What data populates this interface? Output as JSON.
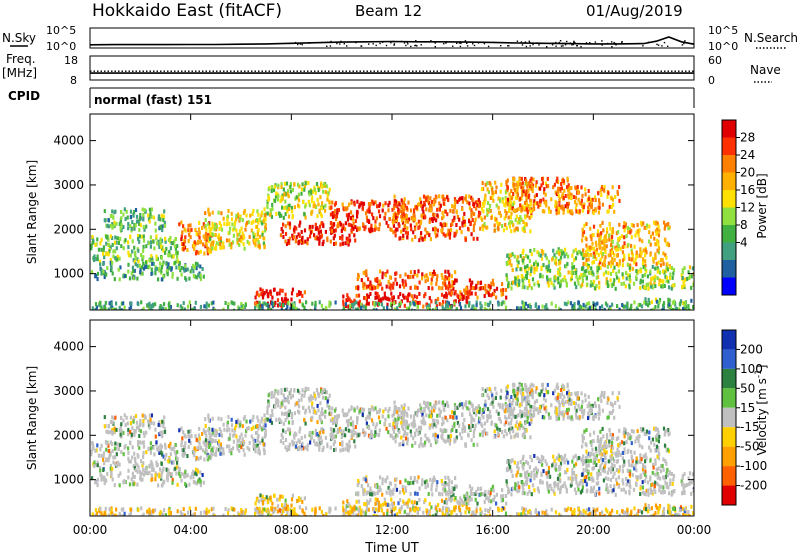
{
  "header": {
    "radar": "Hokkaido East (fitACF)",
    "beam": "Beam 12",
    "date": "01/Aug/2019"
  },
  "left_labels": {
    "nsky": "N.Sky",
    "freq": "Freq.",
    "mhz": "[MHz]",
    "cpid": "CPID"
  },
  "right_labels": {
    "nsearch": "N.Search",
    "nave": "Nave"
  },
  "cpid_text": "normal (fast) 151",
  "chart_data": [
    {
      "type": "line",
      "name": "noise-panel",
      "x_range_hours": [
        0,
        24
      ],
      "left_ticks": [
        "10^5",
        "10^0"
      ],
      "right_ticks": [
        "10^5",
        "10^0"
      ],
      "series": [
        {
          "name": "N.Sky",
          "x": [
            0,
            1,
            2,
            3,
            4,
            5,
            6,
            7,
            8,
            9,
            10,
            11,
            12,
            13,
            14,
            15,
            16,
            17,
            18,
            19,
            20,
            21,
            22,
            22.5,
            23,
            23.5,
            24
          ],
          "y": [
            0.4,
            0.45,
            0.45,
            0.45,
            0.5,
            0.5,
            0.6,
            0.7,
            0.9,
            1.1,
            1.3,
            1.4,
            1.5,
            1.4,
            1.4,
            1.3,
            1.2,
            1.0,
            0.9,
            0.8,
            0.7,
            0.7,
            0.8,
            1.6,
            3.0,
            1.4,
            0.6
          ]
        }
      ]
    },
    {
      "type": "line",
      "name": "frequency-panel",
      "left_ticks": [
        "18",
        "8"
      ],
      "right_ticks": [
        "60",
        "0"
      ],
      "series": [
        {
          "name": "Freq.",
          "x": [
            0,
            24
          ],
          "y": [
            10.9,
            10.9
          ]
        },
        {
          "name": "Nave",
          "x": [
            0,
            24
          ],
          "y": [
            22,
            22
          ]
        }
      ]
    },
    {
      "type": "heatmap",
      "name": "power",
      "x_ticks": [
        "00:00",
        "04:00",
        "08:00",
        "12:00",
        "16:00",
        "20:00",
        "00:00"
      ],
      "x_range_hours": [
        0,
        24
      ],
      "ylabel": "Slant Range [km]",
      "y_ticks": [
        1000,
        2000,
        3000,
        4000
      ],
      "ylim": [
        180,
        4600
      ],
      "colorbar": {
        "label": "Power [dB]",
        "ticks": [
          "28",
          "24",
          "20",
          "16",
          "12",
          "8",
          "4"
        ],
        "colors": [
          "#e00000",
          "#ff3000",
          "#ff8000",
          "#ffb000",
          "#ffe000",
          "#90e040",
          "#40b040",
          "#40a080",
          "#2060a0",
          "#0000ff"
        ]
      },
      "blobs": [
        {
          "t0": 0.0,
          "t1": 3.5,
          "r0": 1300,
          "r1": 1900,
          "lvl": 0.4
        },
        {
          "t0": 0.0,
          "t1": 4.5,
          "r0": 900,
          "r1": 1300,
          "lvl": 0.3
        },
        {
          "t0": 0.5,
          "t1": 3.0,
          "r0": 2000,
          "r1": 2500,
          "lvl": 0.35
        },
        {
          "t0": 3.5,
          "t1": 5.0,
          "r0": 1500,
          "r1": 2200,
          "lvl": 0.75
        },
        {
          "t0": 4.5,
          "t1": 7.0,
          "r0": 1600,
          "r1": 2500,
          "lvl": 0.55
        },
        {
          "t0": 6.5,
          "t1": 8.5,
          "r0": 300,
          "r1": 700,
          "lvl": 0.95
        },
        {
          "t0": 7.5,
          "t1": 10.5,
          "r0": 1700,
          "r1": 2200,
          "lvl": 0.9
        },
        {
          "t0": 7.0,
          "t1": 9.5,
          "r0": 2300,
          "r1": 3100,
          "lvl": 0.5
        },
        {
          "t0": 9.5,
          "t1": 12.5,
          "r0": 2000,
          "r1": 2700,
          "lvl": 0.85
        },
        {
          "t0": 10.0,
          "t1": 15.0,
          "r0": 300,
          "r1": 600,
          "lvl": 0.95
        },
        {
          "t0": 10.5,
          "t1": 14.5,
          "r0": 700,
          "r1": 1100,
          "lvl": 0.8
        },
        {
          "t0": 12.0,
          "t1": 15.5,
          "r0": 1800,
          "r1": 2800,
          "lvl": 0.8
        },
        {
          "t0": 14.0,
          "t1": 16.5,
          "r0": 500,
          "r1": 900,
          "lvl": 0.85
        },
        {
          "t0": 15.5,
          "t1": 17.5,
          "r0": 2000,
          "r1": 3100,
          "lvl": 0.6
        },
        {
          "t0": 16.5,
          "t1": 19.0,
          "r0": 2400,
          "r1": 3200,
          "lvl": 0.75
        },
        {
          "t0": 16.5,
          "t1": 20.0,
          "r0": 700,
          "r1": 1600,
          "lvl": 0.45
        },
        {
          "t0": 18.5,
          "t1": 21.0,
          "r0": 2400,
          "r1": 3000,
          "lvl": 0.7
        },
        {
          "t0": 19.5,
          "t1": 23.0,
          "r0": 1200,
          "r1": 2200,
          "lvl": 0.65
        },
        {
          "t0": 20.0,
          "t1": 24.0,
          "r0": 700,
          "r1": 1200,
          "lvl": 0.45
        },
        {
          "t0": 22.0,
          "t1": 24.0,
          "r0": 200,
          "r1": 500,
          "lvl": 0.35
        },
        {
          "t0": 0.0,
          "t1": 24.0,
          "r0": 200,
          "r1": 400,
          "lvl": 0.3
        }
      ]
    },
    {
      "type": "heatmap",
      "name": "velocity",
      "x_ticks": [
        "00:00",
        "04:00",
        "08:00",
        "12:00",
        "16:00",
        "20:00",
        "00:00"
      ],
      "x_range_hours": [
        0,
        24
      ],
      "xlabel": "Time UT",
      "ylabel": "Slant Range [km]",
      "y_ticks": [
        1000,
        2000,
        3000,
        4000
      ],
      "ylim": [
        180,
        4600
      ],
      "colorbar": {
        "label": "Velocity [m s-1]",
        "ticks": [
          "200",
          "100",
          "50",
          "15",
          "-15",
          "-50",
          "-100",
          "-200"
        ],
        "colors": [
          "#1030b0",
          "#3060d0",
          "#2c8040",
          "#60c040",
          "#c0c0c0",
          "#ffd000",
          "#ffa000",
          "#ff6000",
          "#e00000"
        ]
      }
    }
  ]
}
